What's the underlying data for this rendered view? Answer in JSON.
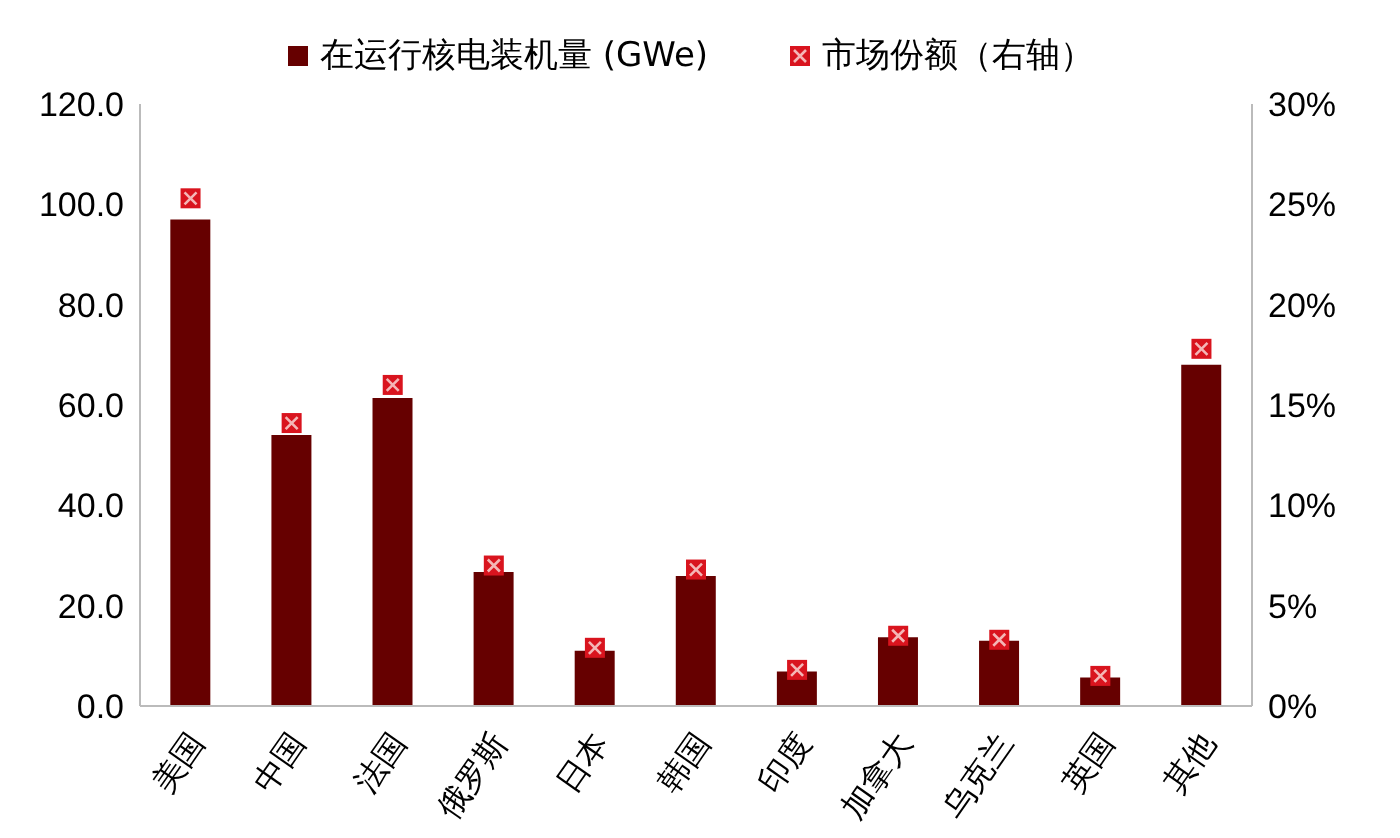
{
  "chart_data": {
    "type": "bar",
    "categories": [
      "美国",
      "中国",
      "法国",
      "俄罗斯",
      "日本",
      "韩国",
      "印度",
      "加拿大",
      "乌克兰",
      "英国",
      "其他"
    ],
    "series": [
      {
        "name": "在运行核电装机量 (GWe)",
        "color": "#660000",
        "values": [
          97,
          54,
          61.4,
          26.7,
          11,
          25.9,
          6.9,
          13.7,
          13,
          5.7,
          68
        ]
      },
      {
        "name": "市场份额（右轴）",
        "type": "scatter",
        "axis": "y2",
        "color": "#d9141e",
        "marker": "square",
        "values": [
          25.3,
          14.1,
          16,
          7,
          2.9,
          6.8,
          1.8,
          3.5,
          3.3,
          1.5,
          17.8
        ]
      }
    ],
    "ylim": [
      0,
      120
    ],
    "yticks": [
      {
        "value": 0,
        "label": "0.0"
      },
      {
        "value": 20,
        "label": "20.0"
      },
      {
        "value": 40,
        "label": "40.0"
      },
      {
        "value": 60,
        "label": "60.0"
      },
      {
        "value": 80,
        "label": "80.0"
      },
      {
        "value": 100,
        "label": "100.0"
      },
      {
        "value": 120,
        "label": "120.0"
      }
    ],
    "y2lim": [
      0,
      30
    ],
    "y2ticks": [
      {
        "value": 0,
        "label": "0%"
      },
      {
        "value": 5,
        "label": "5%"
      },
      {
        "value": 10,
        "label": "10%"
      },
      {
        "value": 15,
        "label": "15%"
      },
      {
        "value": 20,
        "label": "20%"
      },
      {
        "value": 25,
        "label": "25%"
      },
      {
        "value": 30,
        "label": "30%"
      }
    ],
    "grid": false,
    "legend": "top"
  }
}
